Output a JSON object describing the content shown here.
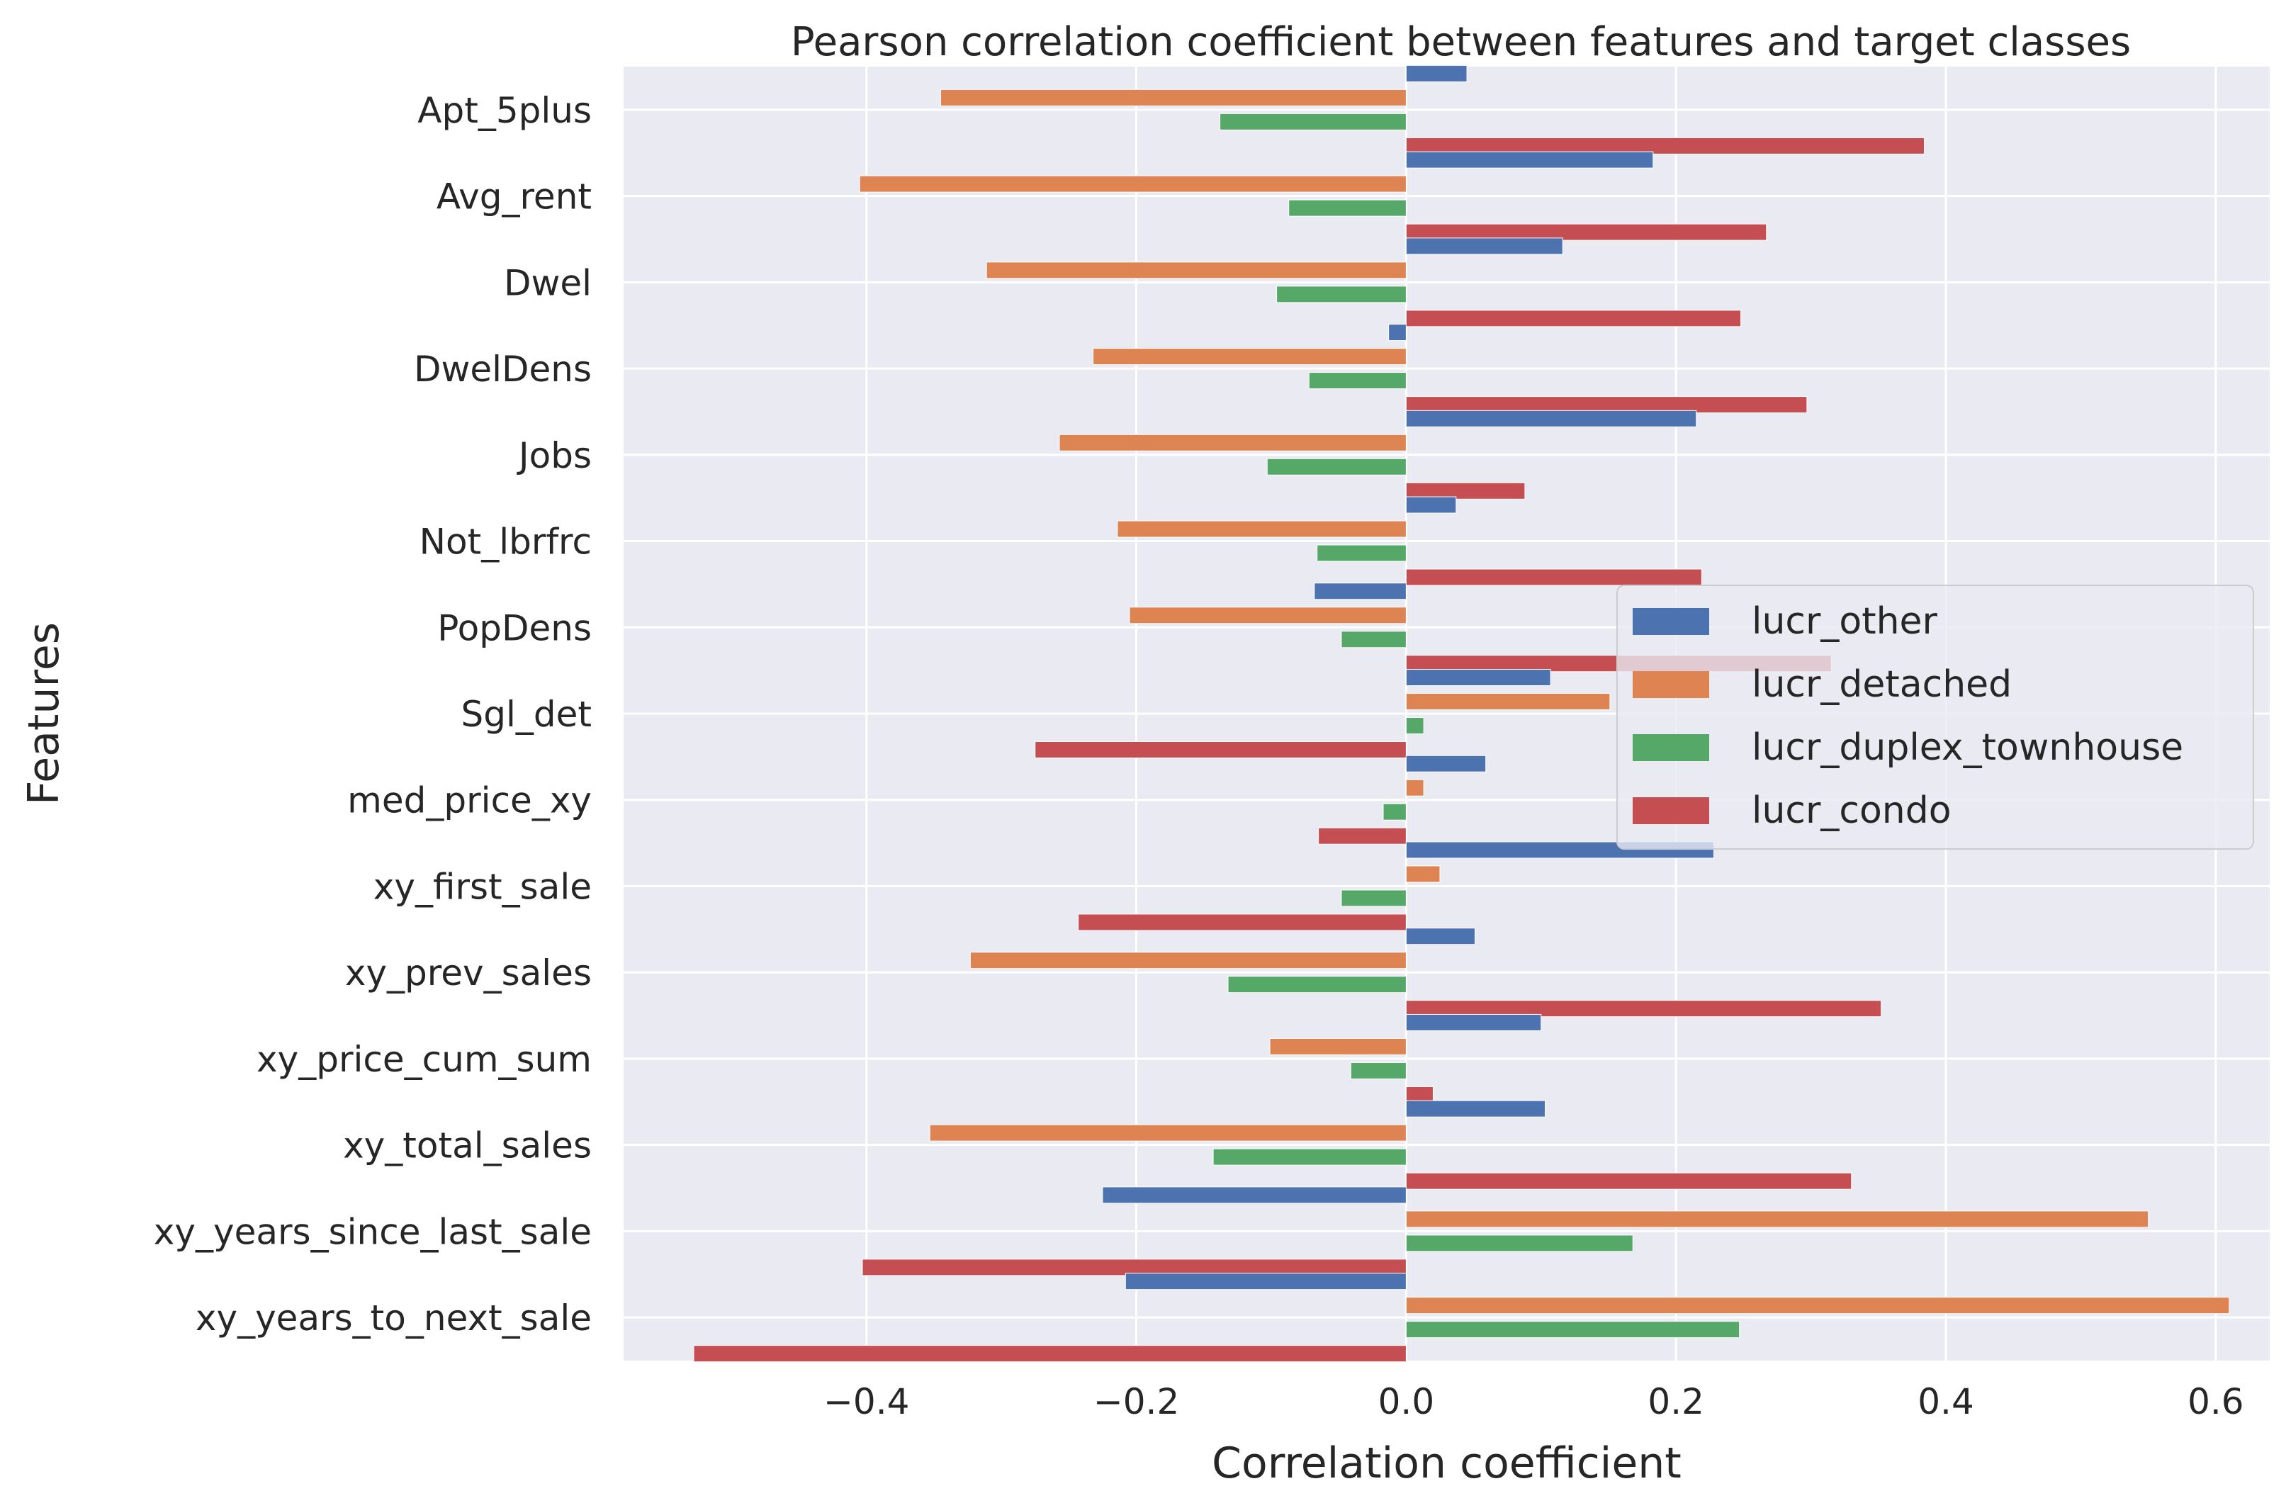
{
  "chart_data": {
    "type": "bar",
    "orientation": "horizontal",
    "title": "Pearson correlation coefficient between features and target classes",
    "xlabel": "Correlation coefficient",
    "ylabel": "Features",
    "xlim": [
      -0.58,
      0.64
    ],
    "xticks": [
      -0.4,
      -0.2,
      0.0,
      0.2,
      0.4,
      0.6
    ],
    "xtick_labels": [
      "−0.4",
      "−0.2",
      "0.0",
      "0.2",
      "0.4",
      "0.6"
    ],
    "grid": true,
    "legend_position": "center-right",
    "categories": [
      "Apt_5plus",
      "Avg_rent",
      "Dwel",
      "DwelDens",
      "Jobs",
      "Not_lbrfrc",
      "PopDens",
      "Sgl_det",
      "med_price_xy",
      "xy_first_sale",
      "xy_prev_sales",
      "xy_price_cum_sum",
      "xy_total_sales",
      "xy_years_since_last_sale",
      "xy_years_to_next_sale"
    ],
    "series": [
      {
        "name": "lucr_other",
        "color": "#4c72b0",
        "values": [
          0.045,
          0.183,
          0.116,
          -0.013,
          0.215,
          0.037,
          -0.068,
          0.107,
          0.059,
          0.228,
          0.051,
          0.1,
          0.103,
          -0.225,
          -0.208
        ]
      },
      {
        "name": "lucr_detached",
        "color": "#dd8452",
        "values": [
          -0.345,
          -0.405,
          -0.311,
          -0.232,
          -0.257,
          -0.214,
          -0.205,
          0.151,
          0.013,
          0.025,
          -0.323,
          -0.101,
          -0.353,
          0.55,
          0.61
        ]
      },
      {
        "name": "lucr_duplex_townhouse",
        "color": "#55a868",
        "values": [
          -0.138,
          -0.087,
          -0.096,
          -0.072,
          -0.103,
          -0.066,
          -0.048,
          0.013,
          -0.017,
          -0.048,
          -0.132,
          -0.041,
          -0.143,
          0.168,
          0.247
        ]
      },
      {
        "name": "lucr_condo",
        "color": "#c44e52",
        "values": [
          0.384,
          0.267,
          0.248,
          0.297,
          0.088,
          0.219,
          0.315,
          -0.275,
          -0.065,
          -0.243,
          0.352,
          0.02,
          0.33,
          -0.403,
          -0.528
        ]
      }
    ]
  }
}
